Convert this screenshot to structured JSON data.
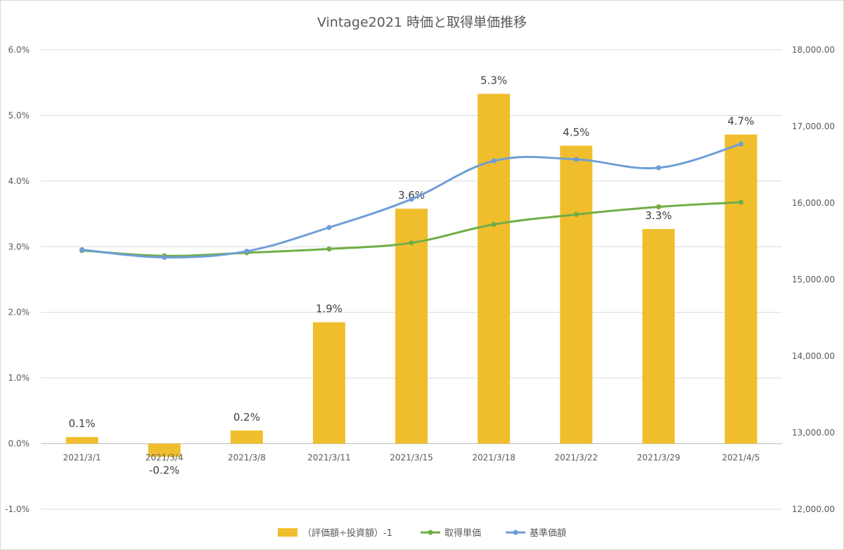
{
  "chart_data": {
    "type": "bar+line",
    "title": "Vintage2021 時価と取得単価推移",
    "categories": [
      "2021/3/1",
      "2021/3/4",
      "2021/3/8",
      "2021/3/11",
      "2021/3/15",
      "2021/3/18",
      "2021/3/22",
      "2021/3/29",
      "2021/4/5"
    ],
    "bar_series": {
      "name": "（評価額÷投資額）-1",
      "axis": "left",
      "color": "#F0BE2D",
      "values": [
        0.1,
        -0.2,
        0.2,
        1.85,
        3.58,
        5.33,
        4.54,
        3.27,
        4.71
      ],
      "labels": [
        "0.1%",
        "-0.2%",
        "0.2%",
        "1.9%",
        "3.6%",
        "5.3%",
        "4.5%",
        "3.3%",
        "4.7%"
      ]
    },
    "line_series": [
      {
        "name": "取得単価",
        "axis": "right",
        "color": "#70AD47",
        "values": [
          15380,
          15310,
          15350,
          15400,
          15480,
          15720,
          15850,
          15950,
          16010
        ]
      },
      {
        "name": "基準価額",
        "axis": "right",
        "color": "#6E9ED6",
        "values": [
          15390,
          15290,
          15370,
          15680,
          16050,
          16550,
          16570,
          16460,
          16770
        ]
      }
    ],
    "y_left": {
      "min": -1.0,
      "max": 6.0,
      "step": 1.0,
      "tick_labels": [
        "-1.0%",
        "0.0%",
        "1.0%",
        "2.0%",
        "3.0%",
        "4.0%",
        "5.0%",
        "6.0%"
      ]
    },
    "y_right": {
      "min": 12000,
      "max": 18000,
      "step": 1000,
      "tick_labels": [
        "12,000.00",
        "13,000.00",
        "14,000.00",
        "15,000.00",
        "16,000.00",
        "17,000.00",
        "18,000.00"
      ]
    },
    "grid": true,
    "legend": "bottom"
  }
}
